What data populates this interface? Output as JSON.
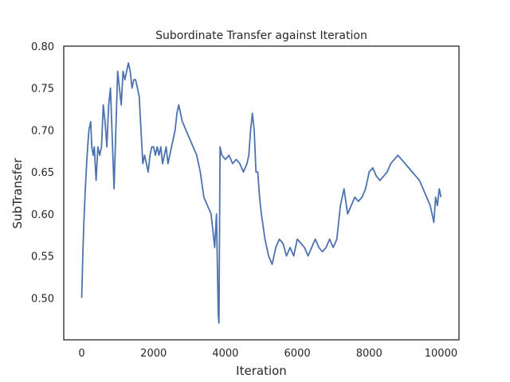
{
  "chart_data": {
    "type": "line",
    "title": "Subordinate Transfer against Iteration",
    "xlabel": "Iteration",
    "ylabel": "SubTransfer",
    "xlim": [
      -500,
      10500
    ],
    "ylim": [
      0.45,
      0.8
    ],
    "xticks": [
      0,
      2000,
      4000,
      6000,
      8000,
      10000
    ],
    "yticks": [
      0.5,
      0.55,
      0.6,
      0.65,
      0.7,
      0.75,
      0.8
    ],
    "xtick_labels": [
      "0",
      "2000",
      "4000",
      "6000",
      "8000",
      "10000"
    ],
    "ytick_labels": [
      "0.50",
      "0.55",
      "0.60",
      "0.65",
      "0.70",
      "0.75",
      "0.80"
    ],
    "grid": false,
    "series": [
      {
        "color": "#4c72b0",
        "x": [
          0,
          30,
          60,
          100,
          150,
          200,
          250,
          280,
          320,
          350,
          400,
          450,
          500,
          550,
          600,
          650,
          700,
          750,
          800,
          850,
          900,
          950,
          1000,
          1050,
          1100,
          1150,
          1200,
          1250,
          1300,
          1350,
          1400,
          1450,
          1500,
          1550,
          1600,
          1650,
          1700,
          1750,
          1800,
          1850,
          1900,
          1950,
          2000,
          2050,
          2100,
          2150,
          2200,
          2250,
          2300,
          2350,
          2400,
          2450,
          2500,
          2550,
          2600,
          2650,
          2700,
          2750,
          2800,
          2850,
          2900,
          2950,
          3000,
          3100,
          3200,
          3300,
          3400,
          3500,
          3600,
          3650,
          3700,
          3750,
          3800,
          3820,
          3850,
          3900,
          4000,
          4100,
          4200,
          4300,
          4400,
          4500,
          4600,
          4650,
          4700,
          4750,
          4800,
          4850,
          4900,
          4950,
          5000,
          5100,
          5200,
          5300,
          5400,
          5500,
          5600,
          5700,
          5800,
          5900,
          6000,
          6100,
          6200,
          6300,
          6400,
          6500,
          6600,
          6700,
          6800,
          6900,
          7000,
          7100,
          7200,
          7300,
          7400,
          7500,
          7600,
          7700,
          7800,
          7900,
          8000,
          8100,
          8200,
          8300,
          8400,
          8500,
          8600,
          8700,
          8800,
          8900,
          9000,
          9100,
          9200,
          9300,
          9400,
          9500,
          9600,
          9700,
          9800,
          9850,
          9900,
          9950,
          10000
        ],
        "values": [
          0.5,
          0.55,
          0.59,
          0.63,
          0.67,
          0.7,
          0.71,
          0.68,
          0.67,
          0.68,
          0.64,
          0.68,
          0.67,
          0.68,
          0.73,
          0.71,
          0.68,
          0.73,
          0.75,
          0.69,
          0.63,
          0.7,
          0.77,
          0.75,
          0.73,
          0.77,
          0.76,
          0.77,
          0.78,
          0.77,
          0.75,
          0.76,
          0.76,
          0.75,
          0.74,
          0.7,
          0.66,
          0.67,
          0.66,
          0.65,
          0.67,
          0.68,
          0.68,
          0.67,
          0.68,
          0.67,
          0.68,
          0.66,
          0.67,
          0.68,
          0.66,
          0.67,
          0.68,
          0.69,
          0.7,
          0.72,
          0.73,
          0.72,
          0.71,
          0.705,
          0.7,
          0.695,
          0.69,
          0.68,
          0.67,
          0.65,
          0.62,
          0.61,
          0.6,
          0.58,
          0.56,
          0.6,
          0.48,
          0.47,
          0.68,
          0.67,
          0.665,
          0.67,
          0.66,
          0.665,
          0.66,
          0.65,
          0.66,
          0.67,
          0.7,
          0.72,
          0.7,
          0.65,
          0.65,
          0.62,
          0.6,
          0.57,
          0.55,
          0.54,
          0.56,
          0.57,
          0.565,
          0.55,
          0.56,
          0.55,
          0.57,
          0.565,
          0.56,
          0.55,
          0.56,
          0.57,
          0.56,
          0.555,
          0.56,
          0.57,
          0.56,
          0.57,
          0.61,
          0.63,
          0.6,
          0.61,
          0.62,
          0.615,
          0.62,
          0.63,
          0.65,
          0.655,
          0.645,
          0.64,
          0.645,
          0.65,
          0.66,
          0.665,
          0.67,
          0.665,
          0.66,
          0.655,
          0.65,
          0.645,
          0.64,
          0.63,
          0.62,
          0.61,
          0.59,
          0.62,
          0.61,
          0.63,
          0.62
        ]
      }
    ]
  }
}
